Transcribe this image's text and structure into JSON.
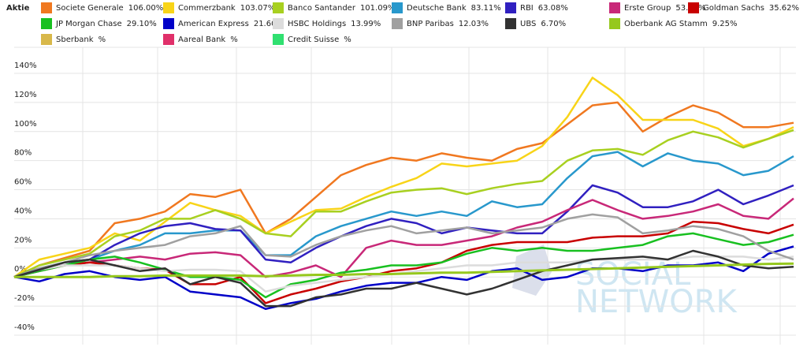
{
  "chart_data": {
    "type": "line",
    "legend_title": "Aktie",
    "watermark": [
      "SOCIAL",
      "NETWORK"
    ],
    "categories": [
      null,
      null,
      null,
      null,
      null,
      null,
      null,
      null,
      null,
      null,
      null,
      null,
      null,
      null,
      null,
      null,
      null,
      null,
      null,
      null,
      null,
      null,
      null,
      null,
      null,
      null,
      null,
      null,
      null,
      null,
      null,
      null
    ],
    "ylim": [
      -40,
      150
    ],
    "yticks": [
      {
        "value": -40,
        "label": "-40%"
      },
      {
        "value": -20,
        "label": "-20%"
      },
      {
        "value": 0,
        "label": "0%"
      },
      {
        "value": 20,
        "label": "20%"
      },
      {
        "value": 40,
        "label": "40%"
      },
      {
        "value": 60,
        "label": "60%"
      },
      {
        "value": 80,
        "label": "80%"
      },
      {
        "value": 100,
        "label": "100%"
      },
      {
        "value": 120,
        "label": "120%"
      },
      {
        "value": 140,
        "label": "140%"
      }
    ],
    "grid": true,
    "series": [
      {
        "name": "Societe Generale",
        "change": "106.00%",
        "color": "#f07820",
        "values": [
          0,
          8,
          13,
          18,
          37,
          40,
          45,
          57,
          55,
          60,
          30,
          40,
          55,
          70,
          77,
          82,
          80,
          85,
          82,
          80,
          88,
          92,
          105,
          118,
          120,
          100,
          110,
          118,
          113,
          103,
          103,
          106
        ]
      },
      {
        "name": "Commerzbank",
        "change": "103.07%",
        "color": "#f8d418",
        "values": [
          0,
          12,
          16,
          20,
          30,
          25,
          38,
          51,
          46,
          42,
          30,
          38,
          46,
          47,
          55,
          62,
          68,
          78,
          76,
          78,
          80,
          90,
          110,
          137,
          125,
          108,
          108,
          108,
          102,
          90,
          95,
          103
        ]
      },
      {
        "name": "Banco Santander",
        "change": "101.09%",
        "color": "#a8d020",
        "values": [
          0,
          8,
          12,
          16,
          28,
          32,
          40,
          40,
          46,
          40,
          30,
          28,
          45,
          45,
          52,
          58,
          60,
          61,
          57,
          61,
          64,
          66,
          80,
          87,
          88,
          84,
          94,
          100,
          96,
          89,
          95,
          101
        ]
      },
      {
        "name": "Deutsche Bank",
        "change": "83.11%",
        "color": "#2898cc",
        "values": [
          0,
          6,
          10,
          12,
          18,
          22,
          30,
          30,
          32,
          32,
          15,
          15,
          28,
          35,
          40,
          45,
          42,
          45,
          42,
          52,
          48,
          50,
          68,
          83,
          86,
          76,
          85,
          80,
          78,
          70,
          73,
          83
        ]
      },
      {
        "name": "RBI",
        "change": "63.08%",
        "color": "#3020c0",
        "values": [
          0,
          5,
          8,
          12,
          22,
          30,
          35,
          37,
          33,
          32,
          12,
          10,
          20,
          28,
          35,
          40,
          37,
          30,
          34,
          32,
          30,
          30,
          45,
          63,
          58,
          48,
          48,
          52,
          60,
          50,
          56,
          63
        ]
      },
      {
        "name": "Erste Group",
        "change": "53.98%",
        "color": "#c82878",
        "values": [
          0,
          5,
          8,
          10,
          12,
          14,
          12,
          16,
          17,
          15,
          0,
          3,
          8,
          0,
          20,
          25,
          22,
          22,
          25,
          28,
          34,
          38,
          46,
          53,
          46,
          40,
          42,
          45,
          50,
          42,
          40,
          54
        ]
      },
      {
        "name": "Goldman Sachs",
        "change": "35.62%",
        "color": "#c80000",
        "values": [
          0,
          4,
          8,
          10,
          8,
          6,
          5,
          -5,
          -5,
          0,
          -18,
          -12,
          -8,
          -3,
          0,
          4,
          6,
          10,
          18,
          22,
          24,
          24,
          24,
          27,
          28,
          28,
          30,
          38,
          37,
          33,
          30,
          36
        ]
      },
      {
        "name": "JP Morgan Chase",
        "change": "29.10%",
        "color": "#18c020",
        "values": [
          0,
          4,
          8,
          12,
          14,
          10,
          5,
          0,
          0,
          -2,
          -14,
          -5,
          -2,
          3,
          5,
          8,
          8,
          10,
          16,
          20,
          18,
          20,
          18,
          18,
          20,
          22,
          28,
          30,
          26,
          22,
          24,
          29
        ]
      },
      {
        "name": "American Express",
        "change": "21.60%",
        "color": "#0000c8",
        "values": [
          0,
          -3,
          2,
          4,
          0,
          -2,
          0,
          -10,
          -12,
          -14,
          -22,
          -18,
          -15,
          -10,
          -6,
          -4,
          -4,
          0,
          -2,
          4,
          6,
          -2,
          0,
          6,
          6,
          4,
          8,
          8,
          10,
          4,
          16,
          21
        ]
      },
      {
        "name": "HSBC Holdings",
        "change": "13.99%",
        "color": "#dcdcdc",
        "values": [
          0,
          5,
          8,
          8,
          8,
          6,
          4,
          5,
          5,
          4,
          -10,
          -6,
          -4,
          -2,
          0,
          2,
          4,
          6,
          8,
          8,
          10,
          10,
          10,
          12,
          12,
          12,
          12,
          14,
          14,
          14,
          12,
          14
        ]
      },
      {
        "name": "BNP Paribas",
        "change": "12.03%",
        "color": "#a0a0a0",
        "values": [
          0,
          6,
          10,
          15,
          18,
          20,
          22,
          28,
          30,
          35,
          15,
          14,
          22,
          28,
          32,
          35,
          30,
          32,
          34,
          30,
          32,
          34,
          40,
          43,
          41,
          30,
          32,
          35,
          33,
          28,
          18,
          12
        ]
      },
      {
        "name": "UBS",
        "change": "6.70%",
        "color": "#323232",
        "values": [
          0,
          5,
          10,
          12,
          8,
          4,
          6,
          -5,
          0,
          -4,
          -20,
          -20,
          -14,
          -12,
          -8,
          -8,
          -4,
          -8,
          -12,
          -8,
          -2,
          4,
          8,
          12,
          13,
          14,
          12,
          18,
          14,
          8,
          6,
          7
        ]
      },
      {
        "name": "Oberbank AG Stamm",
        "change": "9.25%",
        "color": "#96c81e",
        "values": [
          0,
          0,
          0,
          0,
          0.5,
          0.5,
          1,
          1,
          1,
          1,
          0.5,
          1,
          1.5,
          1.5,
          2,
          2,
          2.5,
          3,
          3,
          3.5,
          4,
          4.5,
          5,
          5.5,
          6,
          6.5,
          7,
          7.5,
          8,
          8.5,
          9,
          9.25
        ]
      },
      {
        "name": "Sberbank",
        "change": "%",
        "color": "#d8b84a"
      },
      {
        "name": "Aareal Bank",
        "change": "%",
        "color": "#e0306a"
      },
      {
        "name": "Credit Suisse",
        "change": "%",
        "color": "#30e070"
      }
    ]
  }
}
